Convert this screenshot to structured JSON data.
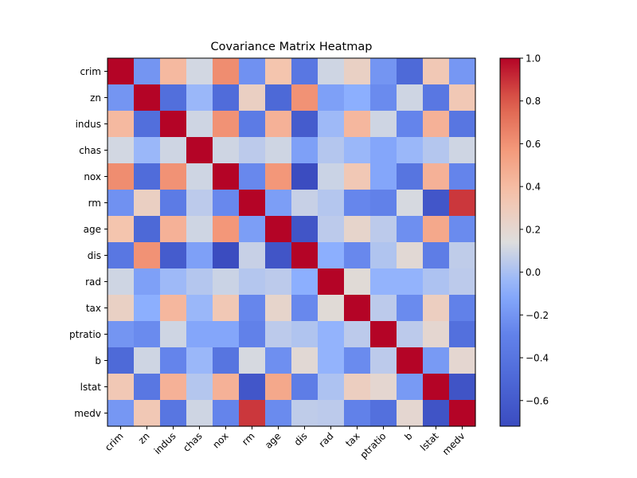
{
  "chart_data": {
    "type": "heatmap",
    "title": "Covariance Matrix Heatmap",
    "xlabel": "",
    "ylabel": "",
    "variables": [
      "crim",
      "zn",
      "indus",
      "chas",
      "nox",
      "rm",
      "age",
      "dis",
      "rad",
      "tax",
      "ptratio",
      "b",
      "lstat",
      "medv"
    ],
    "matrix": [
      [
        1.0,
        -0.2,
        0.41,
        0.11,
        0.62,
        -0.22,
        0.35,
        -0.38,
        0.1,
        0.25,
        -0.2,
        -0.49,
        0.32,
        -0.19
      ],
      [
        -0.2,
        1.0,
        -0.45,
        -0.04,
        -0.47,
        0.26,
        -0.5,
        0.6,
        -0.15,
        -0.08,
        -0.25,
        0.1,
        -0.38,
        0.32
      ],
      [
        0.41,
        -0.45,
        1.0,
        0.1,
        0.6,
        -0.35,
        0.45,
        -0.6,
        -0.03,
        0.42,
        0.1,
        -0.28,
        0.45,
        -0.39
      ],
      [
        0.11,
        -0.04,
        0.1,
        1.0,
        0.1,
        0.05,
        0.1,
        -0.15,
        0.03,
        -0.04,
        -0.12,
        -0.04,
        0.03,
        0.1
      ],
      [
        0.62,
        -0.47,
        0.6,
        0.1,
        1.0,
        -0.26,
        0.58,
        -0.72,
        0.09,
        0.32,
        -0.12,
        -0.4,
        0.45,
        -0.28
      ],
      [
        -0.22,
        0.26,
        -0.35,
        0.05,
        -0.26,
        1.0,
        -0.16,
        0.08,
        0.03,
        -0.27,
        -0.3,
        0.12,
        -0.64,
        0.88
      ],
      [
        0.35,
        -0.5,
        0.45,
        0.1,
        0.58,
        -0.16,
        1.0,
        -0.65,
        0.05,
        0.22,
        0.05,
        -0.23,
        0.5,
        -0.25
      ],
      [
        -0.38,
        0.6,
        -0.6,
        -0.15,
        -0.72,
        0.08,
        -0.65,
        1.0,
        -0.08,
        -0.26,
        0.02,
        0.18,
        -0.33,
        0.06
      ],
      [
        0.1,
        -0.15,
        -0.03,
        0.03,
        0.09,
        0.03,
        0.05,
        -0.08,
        1.0,
        0.17,
        -0.06,
        -0.06,
        0.01,
        0.05
      ],
      [
        0.25,
        -0.08,
        0.42,
        -0.04,
        0.32,
        -0.27,
        0.22,
        -0.26,
        0.17,
        1.0,
        0.05,
        -0.25,
        0.27,
        -0.3
      ],
      [
        -0.2,
        -0.25,
        0.1,
        -0.12,
        -0.12,
        -0.3,
        0.05,
        0.02,
        -0.06,
        0.05,
        1.0,
        0.05,
        0.2,
        -0.44
      ],
      [
        -0.49,
        0.1,
        -0.28,
        -0.04,
        -0.4,
        0.12,
        -0.23,
        0.18,
        -0.06,
        -0.25,
        0.05,
        1.0,
        -0.18,
        0.2
      ],
      [
        0.32,
        -0.38,
        0.45,
        0.03,
        0.45,
        -0.64,
        0.5,
        -0.33,
        0.01,
        0.27,
        0.2,
        -0.18,
        1.0,
        -0.66
      ],
      [
        -0.19,
        0.32,
        -0.39,
        0.1,
        -0.28,
        0.88,
        -0.25,
        0.06,
        0.05,
        -0.3,
        -0.44,
        0.2,
        -0.66,
        1.0
      ]
    ],
    "colormap": "coolwarm",
    "vmin": -0.72,
    "vmax": 1.0,
    "colorbar_ticks": [
      {
        "value": -0.6,
        "label": "−0.6"
      },
      {
        "value": -0.4,
        "label": "−0.4"
      },
      {
        "value": -0.2,
        "label": "−0.2"
      },
      {
        "value": 0.0,
        "label": "0.0"
      },
      {
        "value": 0.2,
        "label": "0.2"
      },
      {
        "value": 0.4,
        "label": "0.4"
      },
      {
        "value": 0.6,
        "label": "0.6"
      },
      {
        "value": 0.8,
        "label": "0.8"
      },
      {
        "value": 1.0,
        "label": "1.0"
      }
    ],
    "x_tick_rotation_deg": 45,
    "grid": false,
    "colorbar_position": "right"
  }
}
